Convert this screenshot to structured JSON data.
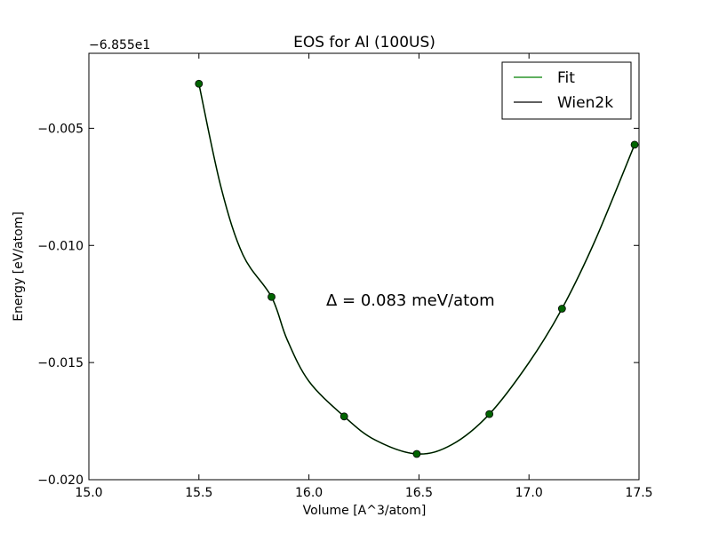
{
  "chart_data": {
    "type": "line",
    "title": "EOS for Al (100US)",
    "xlabel": "Volume [A^3/atom]",
    "ylabel": "Energy [eV/atom]",
    "offset_text": "−6.855e1",
    "xlim": [
      15.0,
      17.5
    ],
    "ylim": [
      -0.02,
      -0.0018
    ],
    "xticks": [
      15.0,
      15.5,
      16.0,
      16.5,
      17.0,
      17.5
    ],
    "xtick_labels": [
      "15.0",
      "15.5",
      "16.0",
      "16.5",
      "17.0",
      "17.5"
    ],
    "yticks": [
      -0.02,
      -0.015,
      -0.01,
      -0.005
    ],
    "ytick_labels": [
      "−0.020",
      "−0.015",
      "−0.010",
      "−0.005"
    ],
    "grid": false,
    "legend_position": "top-right",
    "annotation": "Δ = 0.083 meV/atom",
    "series": [
      {
        "name": "Fit",
        "kind": "line",
        "color": "#008000",
        "x": [
          15.5,
          15.6,
          15.7,
          15.83,
          15.9,
          16.0,
          16.16,
          16.3,
          16.49,
          16.65,
          16.82,
          17.0,
          17.15,
          17.3,
          17.48
        ],
        "y": [
          -0.0031,
          -0.0075,
          -0.0104,
          -0.0122,
          -0.014,
          -0.0158,
          -0.0173,
          -0.0183,
          -0.0189,
          -0.0185,
          -0.0172,
          -0.015,
          -0.0127,
          -0.0098,
          -0.0057
        ]
      },
      {
        "name": "Wien2k",
        "kind": "line",
        "color": "#000000",
        "x": [
          15.5,
          15.6,
          15.7,
          15.83,
          15.9,
          16.0,
          16.16,
          16.3,
          16.49,
          16.65,
          16.82,
          17.0,
          17.15,
          17.3,
          17.48
        ],
        "y": [
          -0.0031,
          -0.0075,
          -0.0104,
          -0.0122,
          -0.014,
          -0.0158,
          -0.0173,
          -0.0183,
          -0.0189,
          -0.0185,
          -0.0172,
          -0.015,
          -0.0127,
          -0.0098,
          -0.0057
        ]
      },
      {
        "name": "",
        "kind": "markers",
        "color": "#006400",
        "x": [
          15.5,
          15.83,
          16.16,
          16.49,
          16.82,
          17.15,
          17.48
        ],
        "y": [
          -0.0031,
          -0.0122,
          -0.0173,
          -0.0189,
          -0.0172,
          -0.0127,
          -0.0057
        ]
      }
    ]
  }
}
